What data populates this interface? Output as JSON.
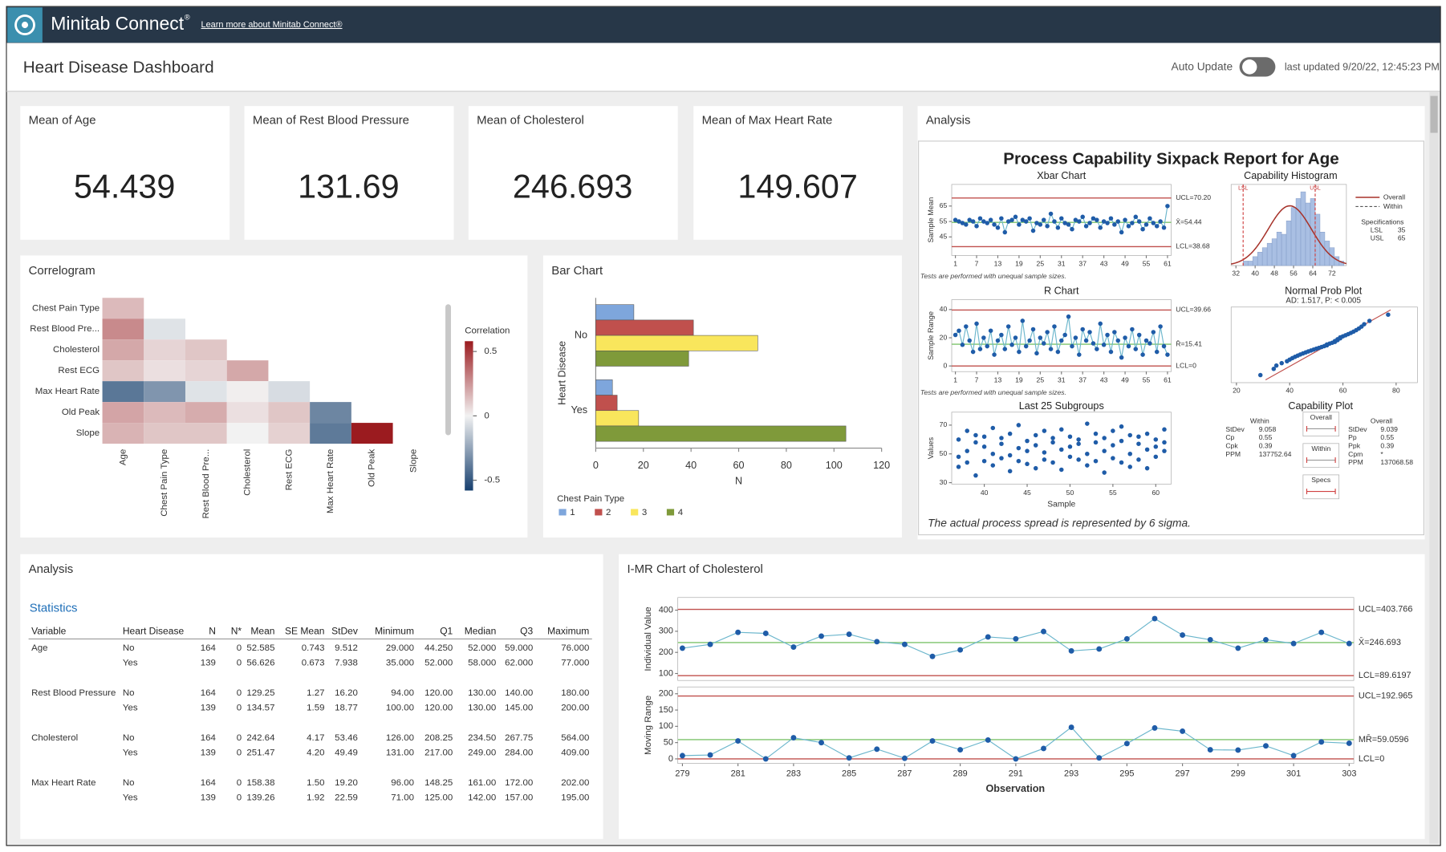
{
  "app": {
    "name": "Minitab Connect",
    "mark": "®",
    "link": "Learn more about Minitab Connect®"
  },
  "header": {
    "title": "Heart Disease Dashboard",
    "auto_update": "Auto Update",
    "last_updated": "last updated 9/20/22, 12:45:23 PM"
  },
  "kpis": [
    {
      "title": "Mean of Age",
      "value": "54.439"
    },
    {
      "title": "Mean of Rest Blood Pressure",
      "value": "131.69"
    },
    {
      "title": "Mean of Cholesterol",
      "value": "246.693"
    },
    {
      "title": "Mean of Max Heart Rate",
      "value": "149.607"
    }
  ],
  "correlogram": {
    "type": "heatmap",
    "title": "Correlogram",
    "rows": [
      "Chest Pain Type",
      "Rest Blood Pre...",
      "Cholesterol",
      "Rest ECG",
      "Max Heart Rate",
      "Old Peak",
      "Slope"
    ],
    "columns": [
      "Age",
      "Chest Pain Type",
      "Rest Blood Pre...",
      "Cholesterol",
      "Rest ECG",
      "Max Heart Rate",
      "Old Peak",
      "Slope"
    ],
    "values": [
      [
        0.15
      ],
      [
        0.28,
        -0.05
      ],
      [
        0.2,
        0.08,
        0.12
      ],
      [
        0.12,
        0.05,
        0.08,
        0.2
      ],
      [
        -0.4,
        -0.3,
        -0.05,
        0.01,
        -0.07
      ],
      [
        0.21,
        0.15,
        0.19,
        0.05,
        0.12,
        -0.35
      ],
      [
        0.17,
        0.12,
        0.12,
        0.0,
        0.09,
        -0.39,
        0.58
      ]
    ],
    "colorbar_title": "Correlation",
    "clim": [
      -0.58,
      0.58
    ],
    "cticks": [
      0.5,
      0,
      -0.5
    ],
    "colors": [
      "#163f6e",
      "#f2f2f2",
      "#9b1b1f"
    ]
  },
  "bar_chart": {
    "type": "barh",
    "title": "Bar Chart",
    "categories": [
      "No",
      "Yes"
    ],
    "series": [
      {
        "name": "1",
        "color": "#7ea6dc",
        "values": [
          16,
          7
        ]
      },
      {
        "name": "2",
        "color": "#c0504d",
        "values": [
          41,
          9
        ]
      },
      {
        "name": "3",
        "color": "#f9e65c",
        "values": [
          68,
          18
        ]
      },
      {
        "name": "4",
        "color": "#7f9a3a",
        "values": [
          39,
          105
        ]
      }
    ],
    "xlim": [
      0,
      120
    ],
    "xticks": [
      0,
      20,
      40,
      60,
      80,
      100,
      120
    ],
    "xlabel": "N",
    "ylabel": "Heart Disease",
    "legend_title": "Chest Pain Type"
  },
  "sixpack": {
    "panel_title": "Analysis",
    "title": "Process Capability Sixpack Report for Age",
    "xbar": {
      "type": "control",
      "title": "Xbar Chart",
      "ylabel": "Sample Mean",
      "values": [
        56,
        55,
        54,
        53,
        56,
        55,
        52,
        57,
        55,
        54,
        56,
        53,
        51,
        57,
        48,
        55,
        56,
        58,
        53,
        56,
        55,
        57,
        49,
        54,
        53,
        56,
        52,
        60,
        55,
        51,
        57,
        54,
        53,
        50,
        56,
        55,
        58,
        52,
        54,
        57,
        56,
        51,
        55,
        54,
        57,
        53,
        55,
        48,
        56,
        52,
        54,
        58,
        55,
        50,
        53,
        57,
        54,
        52,
        55,
        51,
        65
      ],
      "xlim": [
        1,
        61
      ],
      "xticks": [
        1,
        7,
        13,
        19,
        25,
        31,
        37,
        43,
        49,
        55,
        61
      ],
      "ylim": [
        33,
        79
      ],
      "yticks": [
        45,
        55,
        65
      ],
      "ucl": 70.2,
      "center": 54.44,
      "lcl": 38.68,
      "ucl_label": "UCL=70.20",
      "center_label": "X̄=54.44",
      "lcl_label": "LCL=38.68",
      "note": "Tests are performed with unequal sample sizes."
    },
    "r": {
      "type": "control",
      "title": "R Chart",
      "ylabel": "Sample Range",
      "values": [
        22,
        25,
        15,
        28,
        18,
        10,
        30,
        12,
        20,
        14,
        25,
        8,
        18,
        22,
        12,
        28,
        15,
        20,
        10,
        32,
        14,
        18,
        26,
        9,
        20,
        16,
        24,
        12,
        28,
        10,
        18,
        22,
        35,
        14,
        20,
        8,
        26,
        18,
        24,
        16,
        12,
        30,
        15,
        22,
        10,
        24,
        18,
        6,
        20,
        14,
        26,
        12,
        22,
        8,
        18,
        16,
        24,
        10,
        28,
        14,
        8
      ],
      "xlim": [
        1,
        61
      ],
      "xticks": [
        1,
        7,
        13,
        19,
        25,
        31,
        37,
        43,
        49,
        55,
        61
      ],
      "ylim": [
        -4,
        47
      ],
      "yticks": [
        0,
        20,
        40
      ],
      "ucl": 39.66,
      "center": 15.41,
      "lcl": 0,
      "ucl_label": "UCL=39.66",
      "center_label": "R̄=15.41",
      "lcl_label": "LCL=0",
      "note": "Tests are performed with unequal sample sizes."
    },
    "subgroups": {
      "type": "scatter",
      "title": "Last 25 Subgroups",
      "xlabel": "Sample",
      "ylabel": "Values",
      "x": [
        37,
        37,
        37,
        38,
        38,
        38,
        39,
        39,
        39,
        40,
        40,
        40,
        41,
        41,
        41,
        42,
        42,
        42,
        43,
        43,
        43,
        44,
        44,
        44,
        45,
        45,
        45,
        46,
        46,
        46,
        47,
        47,
        47,
        48,
        48,
        48,
        49,
        49,
        49,
        50,
        50,
        50,
        51,
        51,
        51,
        52,
        52,
        52,
        53,
        53,
        53,
        54,
        54,
        54,
        55,
        55,
        55,
        56,
        56,
        56,
        57,
        57,
        57,
        58,
        58,
        58,
        59,
        59,
        59,
        60,
        60,
        60,
        61,
        61,
        61
      ],
      "values": [
        60,
        48,
        41,
        66,
        52,
        44,
        58,
        63,
        35,
        55,
        45,
        62,
        68,
        50,
        42,
        57,
        61,
        47,
        49,
        64,
        38,
        70,
        54,
        45,
        59,
        43,
        52,
        63,
        56,
        40,
        51,
        66,
        46,
        58,
        44,
        61,
        67,
        53,
        39,
        55,
        62,
        48,
        46,
        60,
        57,
        71,
        50,
        42,
        58,
        64,
        45,
        52,
        61,
        37,
        66,
        47,
        56,
        59,
        69,
        44,
        50,
        63,
        41,
        57,
        46,
        62,
        64,
        53,
        40,
        48,
        60,
        55,
        67,
        58,
        52
      ],
      "xlim": [
        36.2,
        61.8
      ],
      "xticks": [
        40,
        45,
        50,
        55,
        60
      ],
      "ylim": [
        29,
        79
      ],
      "yticks": [
        30,
        50,
        70
      ]
    },
    "histogram": {
      "type": "histogram",
      "title": "Capability Histogram",
      "bins": [
        35,
        37,
        39,
        41,
        43,
        45,
        47,
        49,
        51,
        53,
        55,
        57,
        59,
        61,
        63,
        65,
        67,
        69,
        71,
        73,
        75,
        77
      ],
      "counts": [
        2,
        2,
        4,
        6,
        8,
        10,
        12,
        15,
        14,
        20,
        26,
        30,
        33,
        28,
        30,
        23,
        15,
        11,
        8,
        4,
        2
      ],
      "xlim": [
        30,
        78
      ],
      "xticks": [
        32,
        40,
        48,
        56,
        64,
        72
      ],
      "legend": [
        "Overall",
        "Within"
      ],
      "specs_title": "Specifications",
      "specs": [
        {
          "label": "LSL",
          "value": 35
        },
        {
          "label": "USL",
          "value": 65
        }
      ]
    },
    "probplot": {
      "type": "probability",
      "title": "Normal Prob Plot",
      "subtitle": "AD: 1.517, P: < 0.005",
      "values": [
        29,
        34,
        35,
        37,
        39,
        40,
        41,
        42,
        43,
        44,
        45,
        46,
        47,
        48,
        49,
        50,
        51,
        52,
        53,
        54,
        54,
        55,
        56,
        57,
        57,
        58,
        58,
        59,
        59,
        60,
        61,
        62,
        63,
        64,
        65,
        66,
        67,
        68,
        70,
        77
      ],
      "xlim": [
        18,
        88
      ],
      "xticks": [
        20,
        40,
        60,
        80
      ]
    },
    "capability_plot": {
      "title": "Capability Plot",
      "within_title": "Within",
      "within": [
        {
          "label": "StDev",
          "value": 9.058
        },
        {
          "label": "Cp",
          "value": 0.55
        },
        {
          "label": "Cpk",
          "value": 0.39
        },
        {
          "label": "PPM",
          "value": 137752.64
        }
      ],
      "overall_title": "Overall",
      "overall": [
        {
          "label": "StDev",
          "value": 9.039
        },
        {
          "label": "Pp",
          "value": 0.55
        },
        {
          "label": "Ppk",
          "value": 0.39
        },
        {
          "label": "Cpm",
          "value": "*"
        },
        {
          "label": "PPM",
          "value": 137068.58
        }
      ],
      "boxes": [
        "Overall",
        "Within",
        "Specs"
      ]
    },
    "footnote": "The actual process spread is represented by 6 sigma."
  },
  "statistics": {
    "panel_title": "Analysis",
    "title": "Statistics",
    "columns": [
      "Variable",
      "Heart Disease",
      "N",
      "N*",
      "Mean",
      "SE Mean",
      "StDev",
      "Minimum",
      "Q1",
      "Median",
      "Q3",
      "Maximum"
    ],
    "groups": [
      {
        "variable": "Age",
        "rows": [
          [
            "No",
            "164",
            "0",
            "52.585",
            "0.743",
            "9.512",
            "29.000",
            "44.250",
            "52.000",
            "59.000",
            "76.000"
          ],
          [
            "Yes",
            "139",
            "0",
            "56.626",
            "0.673",
            "7.938",
            "35.000",
            "52.000",
            "58.000",
            "62.000",
            "77.000"
          ]
        ]
      },
      {
        "variable": "Rest Blood Pressure",
        "rows": [
          [
            "No",
            "164",
            "0",
            "129.25",
            "1.27",
            "16.20",
            "94.00",
            "120.00",
            "130.00",
            "140.00",
            "180.00"
          ],
          [
            "Yes",
            "139",
            "0",
            "134.57",
            "1.59",
            "18.77",
            "100.00",
            "120.00",
            "130.00",
            "145.00",
            "200.00"
          ]
        ]
      },
      {
        "variable": "Cholesterol",
        "rows": [
          [
            "No",
            "164",
            "0",
            "242.64",
            "4.17",
            "53.46",
            "126.00",
            "208.25",
            "234.50",
            "267.75",
            "564.00"
          ],
          [
            "Yes",
            "139",
            "0",
            "251.47",
            "4.20",
            "49.49",
            "131.00",
            "217.00",
            "249.00",
            "284.00",
            "409.00"
          ]
        ]
      },
      {
        "variable": "Max Heart Rate",
        "rows": [
          [
            "No",
            "164",
            "0",
            "158.38",
            "1.50",
            "19.20",
            "96.00",
            "148.25",
            "161.00",
            "172.00",
            "202.00"
          ],
          [
            "Yes",
            "139",
            "0",
            "139.26",
            "1.92",
            "22.59",
            "71.00",
            "125.00",
            "142.00",
            "157.00",
            "195.00"
          ]
        ]
      }
    ]
  },
  "imr": {
    "type": "imr",
    "title": "I-MR Chart of Cholesterol",
    "xlabel": "Observation",
    "x": [
      279,
      280,
      281,
      282,
      283,
      284,
      285,
      286,
      287,
      288,
      289,
      290,
      291,
      292,
      293,
      294,
      295,
      296,
      297,
      298,
      299,
      300,
      301,
      302,
      303
    ],
    "xlim": [
      279,
      303
    ],
    "xticks": [
      279,
      281,
      283,
      285,
      287,
      289,
      291,
      293,
      295,
      297,
      299,
      301,
      303
    ],
    "individual": {
      "ylabel": "Individual Value",
      "values": [
        220,
        238,
        295,
        290,
        225,
        277,
        286,
        251,
        238,
        181,
        212,
        273,
        264,
        299,
        207,
        216,
        264,
        360,
        282,
        260,
        220,
        260,
        242,
        295,
        242
      ],
      "ylim": [
        67,
        460
      ],
      "yticks": [
        100,
        200,
        300,
        400
      ],
      "ucl": 403.766,
      "center": 246.693,
      "lcl": 89.6197,
      "ucl_label": "UCL=403.766",
      "center_label": "X̄=246.693",
      "lcl_label": "LCL=89.6197"
    },
    "mr": {
      "ylabel": "Moving Range",
      "values": [
        10,
        12,
        55,
        0,
        65,
        50,
        3,
        30,
        2,
        55,
        28,
        58,
        0,
        32,
        97,
        3,
        47,
        95,
        85,
        28,
        27,
        40,
        10,
        52,
        48
      ],
      "ylim": [
        -14,
        221
      ],
      "yticks": [
        0,
        50,
        100,
        150,
        200
      ],
      "ucl": 192.965,
      "center": 59.0596,
      "lcl": 0,
      "ucl_label": "UCL=192.965",
      "center_label": "MR̄=59.0596",
      "lcl_label": "LCL=0"
    }
  }
}
